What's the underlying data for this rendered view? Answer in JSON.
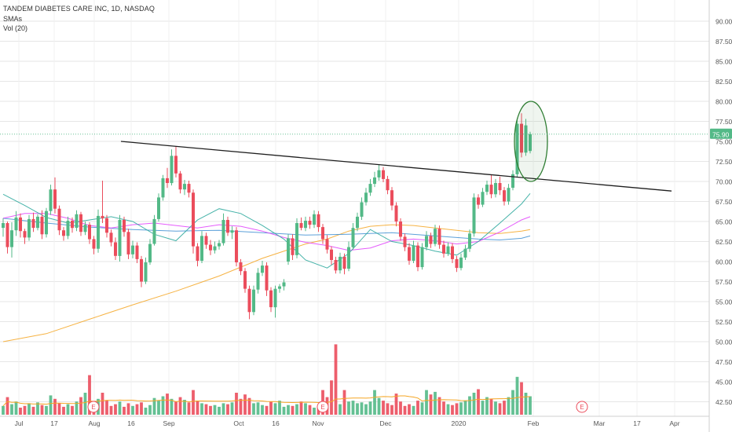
{
  "header": {
    "title": "TANDEM DIABETES CARE INC, 1D, NASDAQ",
    "sma_label": "SMAs",
    "vol_label": "Vol (20)"
  },
  "chart_data": {
    "type": "candlestick",
    "y_ticks": [
      "90.00",
      "87.50",
      "85.00",
      "82.50",
      "80.00",
      "77.50",
      "75.00",
      "72.50",
      "70.00",
      "67.50",
      "65.00",
      "62.50",
      "60.00",
      "57.50",
      "55.00",
      "52.50",
      "50.00",
      "47.50",
      "45.00",
      "42.50"
    ],
    "ylim": [
      41.5,
      92.0
    ],
    "x_ticks": [
      "Jul",
      "17",
      "Aug",
      "16",
      "Sep",
      "Oct",
      "16",
      "Nov",
      "Dec",
      "2020",
      "Feb",
      "Mar",
      "17",
      "Apr"
    ],
    "last_price": "75.90",
    "earnings_marker": "E",
    "colors": {
      "up": "#53b987",
      "down": "#eb4d5c",
      "trendline": "#1f1f1f",
      "sma_teal": "#26a69a",
      "sma_pink": "#e040fb",
      "sma_orange": "#f5a623",
      "sma_blue": "#3f8fd2",
      "highlight_ellipse": "#2e7d32",
      "grid": "#e6e6e6",
      "last_price_bg": "#53b987"
    },
    "trendline": {
      "start": [
        "Aug 7",
        75.0
      ],
      "end": [
        "Mar 31",
        68.8
      ]
    },
    "highlight": {
      "center": [
        "Jan 31",
        75.0
      ],
      "span": [
        70.0,
        80.0
      ]
    },
    "candles": [
      [
        64.2,
        65.4,
        63.1,
        64.8
      ],
      [
        64.8,
        65.0,
        61.0,
        61.8
      ],
      [
        61.8,
        64.9,
        60.5,
        63.9
      ],
      [
        63.9,
        66.3,
        63.2,
        65.5
      ],
      [
        65.5,
        66.0,
        63.0,
        63.8
      ],
      [
        63.8,
        64.1,
        62.2,
        63.0
      ],
      [
        63.0,
        65.8,
        62.6,
        65.3
      ],
      [
        65.3,
        66.1,
        63.7,
        64.2
      ],
      [
        64.2,
        65.9,
        63.9,
        65.6
      ],
      [
        65.6,
        66.4,
        62.8,
        63.4
      ],
      [
        63.4,
        66.7,
        63.0,
        66.3
      ],
      [
        66.3,
        69.6,
        65.8,
        69.0
      ],
      [
        69.0,
        70.5,
        66.0,
        66.6
      ],
      [
        66.6,
        67.0,
        63.3,
        63.9
      ],
      [
        63.9,
        64.3,
        62.6,
        63.2
      ],
      [
        63.2,
        65.6,
        62.8,
        65.1
      ],
      [
        65.1,
        65.5,
        63.6,
        64.2
      ],
      [
        64.2,
        66.4,
        63.8,
        65.9
      ],
      [
        65.9,
        66.2,
        63.2,
        63.7
      ],
      [
        63.7,
        65.0,
        63.3,
        64.6
      ],
      [
        64.6,
        64.9,
        62.2,
        62.8
      ],
      [
        62.8,
        63.2,
        60.9,
        61.6
      ],
      [
        61.6,
        66.5,
        61.1,
        65.7
      ],
      [
        65.7,
        70.1,
        64.8,
        65.4
      ],
      [
        65.4,
        65.8,
        63.0,
        63.6
      ],
      [
        63.6,
        64.0,
        61.9,
        62.4
      ],
      [
        62.4,
        63.0,
        60.2,
        60.7
      ],
      [
        60.7,
        65.8,
        60.0,
        65.2
      ],
      [
        65.2,
        65.6,
        63.1,
        63.7
      ],
      [
        63.7,
        64.1,
        60.3,
        60.9
      ],
      [
        60.9,
        62.6,
        60.4,
        62.0
      ],
      [
        62.0,
        62.4,
        59.8,
        60.3
      ],
      [
        60.3,
        60.7,
        56.8,
        57.5
      ],
      [
        57.5,
        60.5,
        57.2,
        59.9
      ],
      [
        59.9,
        62.8,
        59.6,
        62.2
      ],
      [
        62.2,
        65.8,
        62.0,
        65.3
      ],
      [
        65.3,
        68.5,
        65.0,
        68.0
      ],
      [
        68.0,
        70.8,
        67.6,
        70.4
      ],
      [
        70.4,
        71.7,
        69.2,
        69.8
      ],
      [
        69.8,
        74.0,
        69.5,
        73.2
      ],
      [
        73.2,
        74.4,
        70.5,
        71.0
      ],
      [
        71.0,
        71.3,
        68.5,
        69.0
      ],
      [
        69.0,
        70.2,
        68.3,
        69.7
      ],
      [
        69.7,
        70.1,
        68.0,
        68.6
      ],
      [
        68.6,
        69.0,
        61.0,
        61.9
      ],
      [
        61.9,
        62.3,
        59.4,
        60.1
      ],
      [
        60.1,
        63.8,
        59.8,
        63.2
      ],
      [
        63.2,
        63.6,
        61.6,
        62.1
      ],
      [
        62.1,
        62.7,
        60.8,
        61.4
      ],
      [
        61.4,
        62.5,
        61.0,
        61.9
      ],
      [
        61.9,
        62.7,
        61.5,
        62.3
      ],
      [
        62.3,
        66.0,
        62.0,
        65.2
      ],
      [
        65.2,
        65.6,
        63.2,
        63.6
      ],
      [
        63.6,
        64.4,
        62.8,
        63.9
      ],
      [
        63.9,
        64.3,
        59.4,
        59.9
      ],
      [
        59.9,
        60.3,
        58.3,
        58.8
      ],
      [
        58.8,
        59.2,
        56.1,
        56.6
      ],
      [
        56.6,
        57.0,
        52.8,
        53.7
      ],
      [
        53.7,
        57.0,
        53.3,
        56.5
      ],
      [
        56.5,
        59.2,
        56.0,
        58.6
      ],
      [
        58.6,
        60.1,
        58.2,
        59.5
      ],
      [
        59.5,
        59.9,
        55.7,
        56.4
      ],
      [
        56.4,
        56.8,
        53.7,
        54.3
      ],
      [
        54.3,
        57.0,
        53.0,
        56.6
      ],
      [
        56.6,
        57.2,
        56.1,
        56.9
      ],
      [
        56.9,
        57.8,
        56.4,
        57.4
      ],
      [
        60.0,
        63.4,
        59.6,
        62.9
      ],
      [
        62.9,
        63.4,
        60.2,
        60.8
      ],
      [
        60.8,
        65.4,
        60.4,
        64.8
      ],
      [
        64.8,
        65.5,
        63.9,
        64.2
      ],
      [
        64.2,
        65.6,
        63.8,
        65.1
      ],
      [
        65.1,
        65.6,
        64.1,
        64.6
      ],
      [
        64.6,
        66.4,
        64.2,
        65.9
      ],
      [
        65.9,
        66.3,
        63.7,
        64.3
      ],
      [
        64.3,
        64.7,
        62.2,
        62.8
      ],
      [
        62.8,
        63.3,
        61.0,
        61.5
      ],
      [
        61.5,
        61.9,
        59.6,
        60.2
      ],
      [
        60.2,
        60.6,
        58.5,
        58.9
      ],
      [
        58.9,
        61.1,
        58.5,
        60.6
      ],
      [
        60.6,
        61.0,
        58.4,
        59.1
      ],
      [
        59.1,
        62.5,
        58.8,
        61.8
      ],
      [
        61.8,
        64.8,
        61.5,
        64.2
      ],
      [
        64.2,
        66.1,
        63.8,
        65.6
      ],
      [
        65.6,
        68.0,
        65.2,
        67.4
      ],
      [
        67.4,
        69.2,
        67.0,
        68.6
      ],
      [
        68.6,
        70.3,
        68.2,
        69.7
      ],
      [
        69.7,
        71.2,
        69.3,
        70.5
      ],
      [
        70.5,
        72.1,
        70.1,
        71.4
      ],
      [
        71.4,
        71.8,
        69.9,
        70.3
      ],
      [
        70.3,
        70.7,
        68.4,
        68.9
      ],
      [
        68.9,
        69.3,
        66.4,
        67.0
      ],
      [
        67.0,
        67.4,
        64.4,
        65.0
      ],
      [
        65.0,
        65.4,
        62.6,
        63.1
      ],
      [
        63.1,
        63.5,
        61.3,
        61.8
      ],
      [
        61.8,
        62.3,
        59.6,
        60.1
      ],
      [
        60.1,
        62.6,
        59.8,
        62.0
      ],
      [
        62.0,
        62.4,
        58.8,
        59.3
      ],
      [
        59.3,
        62.3,
        59.0,
        61.8
      ],
      [
        61.8,
        63.8,
        61.4,
        63.2
      ],
      [
        63.2,
        63.6,
        61.7,
        62.2
      ],
      [
        62.2,
        64.6,
        61.9,
        64.1
      ],
      [
        64.1,
        64.5,
        61.6,
        62.1
      ],
      [
        62.1,
        62.6,
        60.5,
        61.0
      ],
      [
        61.0,
        62.4,
        60.7,
        61.9
      ],
      [
        61.9,
        62.3,
        59.8,
        60.3
      ],
      [
        60.3,
        60.7,
        58.7,
        59.2
      ],
      [
        59.2,
        61.0,
        58.9,
        60.5
      ],
      [
        60.5,
        62.1,
        60.2,
        61.6
      ],
      [
        61.6,
        64.0,
        61.2,
        63.5
      ],
      [
        63.5,
        68.5,
        63.1,
        68.0
      ],
      [
        68.0,
        68.4,
        66.6,
        67.1
      ],
      [
        67.1,
        69.2,
        66.8,
        68.7
      ],
      [
        68.7,
        70.1,
        68.3,
        69.6
      ],
      [
        69.6,
        70.8,
        67.9,
        68.4
      ],
      [
        68.4,
        70.3,
        68.0,
        69.8
      ],
      [
        69.8,
        70.6,
        68.3,
        68.9
      ],
      [
        68.9,
        69.3,
        67.0,
        67.5
      ],
      [
        67.5,
        69.7,
        67.1,
        69.2
      ],
      [
        69.2,
        71.4,
        68.9,
        70.9
      ],
      [
        70.9,
        77.9,
        70.5,
        77.2
      ],
      [
        77.2,
        78.5,
        73.0,
        73.6
      ],
      [
        73.6,
        77.8,
        73.2,
        77.0
      ],
      [
        73.8,
        76.2,
        73.5,
        75.9
      ]
    ],
    "volume_ylim": [
      0,
      10
    ],
    "volume": [
      1.0,
      2.0,
      1.2,
      1.5,
      0.8,
      1.0,
      1.3,
      0.9,
      1.4,
      1.1,
      1.0,
      2.2,
      1.8,
      1.3,
      0.9,
      1.2,
      1.0,
      1.5,
      2.0,
      2.5,
      4.5,
      1.3,
      1.8,
      2.5,
      1.6,
      1.0,
      1.2,
      1.5,
      0.9,
      1.3,
      1.0,
      1.2,
      1.4,
      0.8,
      1.1,
      1.9,
      1.6,
      2.1,
      2.4,
      1.8,
      1.5,
      2.0,
      1.7,
      1.4,
      2.8,
      1.6,
      1.3,
      1.2,
      1.0,
      1.1,
      0.9,
      1.3,
      1.2,
      1.4,
      2.5,
      1.8,
      2.3,
      1.9,
      1.3,
      1.4,
      1.1,
      1.0,
      1.5,
      1.3,
      1.6,
      0.9,
      1.1,
      1.0,
      1.2,
      1.5,
      1.3,
      1.1,
      0.8,
      1.0,
      2.8,
      2.0,
      3.9,
      8.0,
      1.2,
      2.8,
      1.5,
      1.6,
      1.3,
      1.4,
      1.2,
      1.5,
      2.8,
      1.9,
      1.6,
      1.3,
      1.1,
      2.4,
      1.5,
      1.0,
      1.2,
      1.0,
      1.6,
      1.4,
      2.8,
      2.3,
      2.6,
      2.0,
      1.5,
      1.2,
      1.1,
      1.3,
      1.4,
      1.6,
      2.1,
      2.5,
      2.9,
      1.6,
      2.0,
      1.8,
      1.5,
      1.3,
      1.6,
      2.0,
      2.8,
      4.3,
      3.7,
      2.5,
      2.1
    ],
    "sma_teal": [
      [
        0,
        68.4
      ],
      [
        5,
        67.0
      ],
      [
        10,
        65.5
      ],
      [
        15,
        64.8
      ],
      [
        20,
        65.2
      ],
      [
        25,
        65.6
      ],
      [
        30,
        65.0
      ],
      [
        35,
        63.4
      ],
      [
        40,
        62.6
      ],
      [
        45,
        65.2
      ],
      [
        50,
        66.6
      ],
      [
        55,
        66.0
      ],
      [
        60,
        64.5
      ],
      [
        65,
        62.8
      ],
      [
        70,
        60.2
      ],
      [
        75,
        59.2
      ],
      [
        80,
        61.0
      ],
      [
        85,
        64.0
      ],
      [
        90,
        62.5
      ],
      [
        95,
        62.0
      ],
      [
        100,
        61.3
      ],
      [
        105,
        60.8
      ],
      [
        110,
        62.5
      ],
      [
        115,
        64.8
      ],
      [
        120,
        67.2
      ],
      [
        122,
        68.5
      ]
    ],
    "sma_pink": [
      [
        0,
        65.4
      ],
      [
        5,
        66.0
      ],
      [
        10,
        66.0
      ],
      [
        15,
        65.4
      ],
      [
        20,
        64.5
      ],
      [
        25,
        64.2
      ],
      [
        30,
        64.6
      ],
      [
        35,
        64.8
      ],
      [
        40,
        64.5
      ],
      [
        45,
        64.2
      ],
      [
        50,
        64.6
      ],
      [
        55,
        64.4
      ],
      [
        60,
        63.8
      ],
      [
        65,
        63.0
      ],
      [
        70,
        62.4
      ],
      [
        75,
        62.0
      ],
      [
        80,
        61.4
      ],
      [
        85,
        61.7
      ],
      [
        90,
        62.6
      ],
      [
        95,
        62.8
      ],
      [
        100,
        62.6
      ],
      [
        105,
        62.2
      ],
      [
        110,
        62.5
      ],
      [
        115,
        63.7
      ],
      [
        120,
        65.2
      ],
      [
        122,
        65.6
      ]
    ],
    "sma_orange": [
      [
        0,
        50.0
      ],
      [
        10,
        51.0
      ],
      [
        20,
        52.8
      ],
      [
        30,
        54.6
      ],
      [
        40,
        56.3
      ],
      [
        50,
        58.2
      ],
      [
        60,
        60.4
      ],
      [
        70,
        62.2
      ],
      [
        75,
        62.8
      ],
      [
        80,
        63.8
      ],
      [
        85,
        64.4
      ],
      [
        90,
        64.6
      ],
      [
        95,
        64.5
      ],
      [
        100,
        64.2
      ],
      [
        105,
        63.9
      ],
      [
        110,
        63.6
      ],
      [
        115,
        63.5
      ],
      [
        120,
        63.8
      ],
      [
        122,
        64.0
      ]
    ],
    "sma_blue": [
      [
        0,
        65.4
      ],
      [
        10,
        64.8
      ],
      [
        20,
        64.3
      ],
      [
        30,
        64.0
      ],
      [
        40,
        63.8
      ],
      [
        50,
        63.9
      ],
      [
        60,
        63.6
      ],
      [
        70,
        63.3
      ],
      [
        80,
        63.4
      ],
      [
        90,
        63.6
      ],
      [
        100,
        63.2
      ],
      [
        110,
        62.8
      ],
      [
        115,
        62.7
      ],
      [
        120,
        62.9
      ],
      [
        122,
        63.2
      ]
    ]
  }
}
